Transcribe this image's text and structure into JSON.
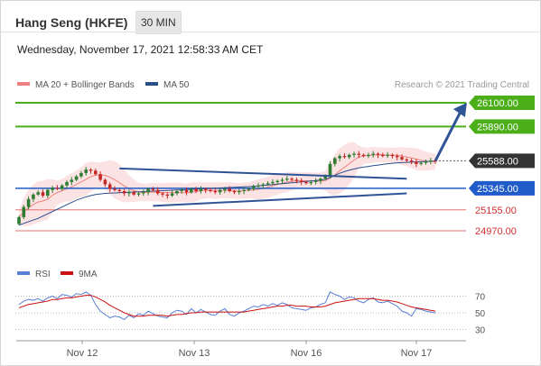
{
  "header": {
    "title": "Hang Seng (HKFE)",
    "timeframe": "30 MIN",
    "datetime": "Wednesday, November 17, 2021 12:58:33 AM CET"
  },
  "legend": {
    "items": [
      {
        "label": "MA 20 + Bollinger Bands",
        "color": "#f08080"
      },
      {
        "label": "MA 50",
        "color": "#2b4d8c"
      }
    ],
    "credit": "Research © 2021 Trading Central"
  },
  "rsi_legend": {
    "items": [
      {
        "label": "RSI",
        "color": "#5a7fd6"
      },
      {
        "label": "9MA",
        "color": "#cc1111"
      }
    ]
  },
  "colors": {
    "up": "#2e7d32",
    "down": "#c62828",
    "resistance": "#4caf1a",
    "support_blue": "#1f5bc9",
    "support_red": "#e57373",
    "current": "#333333",
    "trend": "#2f5496"
  },
  "chart_data": {
    "type": "candlestick",
    "x_ticks": [
      "Nov 12",
      "Nov 13",
      "Nov 16",
      "Nov 17"
    ],
    "levels": [
      {
        "value": 26100,
        "label": "26100.00",
        "style": "resistance"
      },
      {
        "value": 25890,
        "label": "25890.00",
        "style": "resistance"
      },
      {
        "value": 25588,
        "label": "25588.00",
        "style": "current"
      },
      {
        "value": 25345,
        "label": "25345.00",
        "style": "support_blue"
      },
      {
        "value": 25155,
        "label": "25155.00",
        "style": "support_red"
      },
      {
        "value": 24970,
        "label": "24970.00",
        "style": "support_red"
      }
    ],
    "close": [
      25090,
      25180,
      25250,
      25290,
      25310,
      25280,
      25330,
      25350,
      25340,
      25370,
      25400,
      25420,
      25450,
      25480,
      25510,
      25500,
      25470,
      25420,
      25380,
      25340,
      25330,
      25320,
      25300,
      25310,
      25290,
      25300,
      25310,
      25340,
      25330,
      25300,
      25290,
      25280,
      25300,
      25320,
      25330,
      25310,
      25340,
      25320,
      25340,
      25330,
      25320,
      25310,
      25330,
      25340,
      25320,
      25310,
      25320,
      25330,
      25340,
      25360,
      25370,
      25380,
      25390,
      25400,
      25410,
      25420,
      25430,
      25420,
      25410,
      25400,
      25390,
      25400,
      25410,
      25430,
      25450,
      25560,
      25610,
      25630,
      25620,
      25640,
      25650,
      25640,
      25630,
      25640,
      25650,
      25640,
      25630,
      25640,
      25630,
      25620,
      25600,
      25590,
      25580,
      25560,
      25570,
      25580,
      25590,
      25588
    ],
    "ma50": [
      25020,
      25035,
      25050,
      25065,
      25080,
      25100,
      25120,
      25140,
      25160,
      25180,
      25200,
      25220,
      25240,
      25255,
      25270,
      25280,
      25290,
      25295,
      25300,
      25302,
      25304,
      25306,
      25308,
      25310,
      25312,
      25314,
      25316,
      25318,
      25320,
      25322,
      25324,
      25326,
      25328,
      25330,
      25332,
      25334,
      25336,
      25338,
      25340,
      25342,
      25344,
      25346,
      25348,
      25350,
      25352,
      25354,
      25356,
      25358,
      25360,
      25363,
      25366,
      25370,
      25374,
      25378,
      25382,
      25386,
      25390,
      25394,
      25398,
      25402,
      25406,
      25410,
      25414,
      25418,
      25424,
      25440,
      25460,
      25478,
      25492,
      25505,
      25515,
      25525,
      25532,
      25538,
      25545,
      25550,
      25556,
      25562,
      25566,
      25570,
      25572,
      25574,
      25576,
      25578,
      25580,
      25582,
      25584,
      25586
    ],
    "trendlines": [
      {
        "from": [
          21,
          25520
        ],
        "to": [
          81,
          25430
        ]
      },
      {
        "from": [
          28,
          25190
        ],
        "to": [
          81,
          25300
        ]
      }
    ],
    "projection": {
      "from": [
        87,
        25588
      ],
      "to": [
        93,
        26100
      ]
    },
    "rsi": {
      "levels": [
        70,
        50,
        30
      ],
      "values": [
        60,
        64,
        66,
        65,
        67,
        64,
        68,
        70,
        67,
        72,
        71,
        69,
        73,
        72,
        75,
        71,
        60,
        52,
        48,
        44,
        46,
        45,
        42,
        47,
        44,
        49,
        47,
        52,
        49,
        46,
        45,
        44,
        50,
        53,
        52,
        48,
        55,
        50,
        54,
        51,
        48,
        47,
        52,
        55,
        48,
        46,
        50,
        52,
        55,
        58,
        57,
        60,
        58,
        61,
        59,
        62,
        60,
        56,
        55,
        54,
        53,
        56,
        57,
        60,
        62,
        75,
        72,
        70,
        66,
        69,
        68,
        64,
        62,
        66,
        68,
        63,
        62,
        64,
        61,
        58,
        52,
        50,
        46,
        55,
        54,
        52,
        51,
        50
      ],
      "ma9": [
        56,
        58,
        60,
        61,
        62,
        63,
        64,
        66,
        66,
        67,
        68,
        68,
        69,
        70,
        71,
        71,
        69,
        66,
        63,
        59,
        56,
        53,
        50,
        48,
        46,
        46,
        46,
        47,
        47,
        47,
        47,
        46,
        47,
        48,
        48,
        49,
        50,
        50,
        51,
        51,
        51,
        51,
        51,
        51,
        51,
        51,
        51,
        51,
        52,
        53,
        54,
        55,
        56,
        57,
        58,
        58,
        59,
        59,
        58,
        58,
        58,
        57,
        57,
        57,
        58,
        60,
        62,
        63,
        64,
        65,
        66,
        67,
        67,
        67,
        67,
        66,
        65,
        65,
        64,
        63,
        61,
        59,
        57,
        56,
        55,
        54,
        53,
        52
      ]
    }
  }
}
